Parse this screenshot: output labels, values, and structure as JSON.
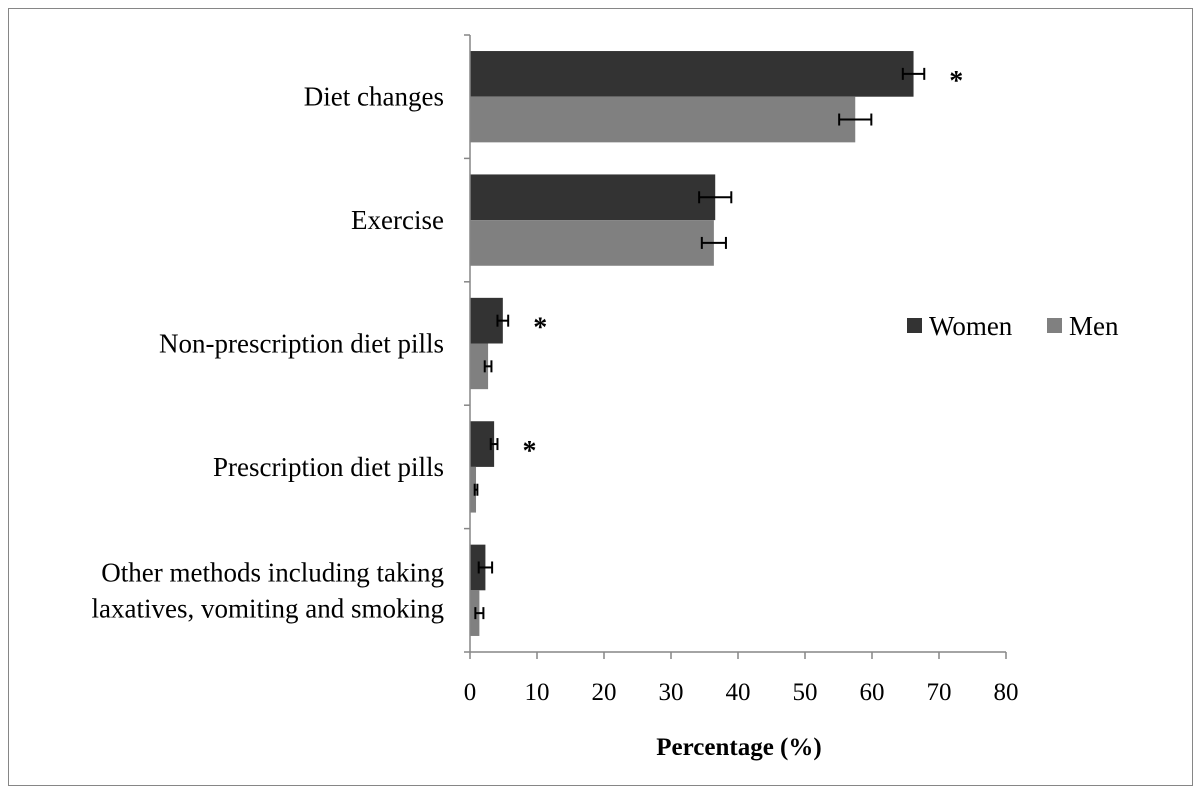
{
  "chart_data": {
    "type": "bar",
    "orientation": "horizontal",
    "categories": [
      "Diet changes",
      "Exercise",
      "Non-prescription diet pills",
      "Prescription diet pills",
      [
        "Other methods including taking",
        "laxatives,  vomiting and smoking"
      ]
    ],
    "series": [
      {
        "name": "Women",
        "color": "#333333",
        "values": [
          66.2,
          36.6,
          4.9,
          3.6,
          2.3
        ],
        "error": [
          1.6,
          2.4,
          0.8,
          0.5,
          1.0
        ]
      },
      {
        "name": "Men",
        "color": "#808080",
        "values": [
          57.5,
          36.4,
          2.7,
          0.9,
          1.4
        ],
        "error": [
          2.4,
          1.8,
          0.5,
          0.2,
          0.6
        ]
      }
    ],
    "significance": [
      "*",
      "",
      "*",
      "*",
      ""
    ],
    "xlabel": "Percentage (%)",
    "xlim": [
      0,
      80
    ],
    "xticks": [
      0,
      10,
      20,
      30,
      40,
      50,
      60,
      70,
      80
    ],
    "legend": "right",
    "grid": false
  }
}
